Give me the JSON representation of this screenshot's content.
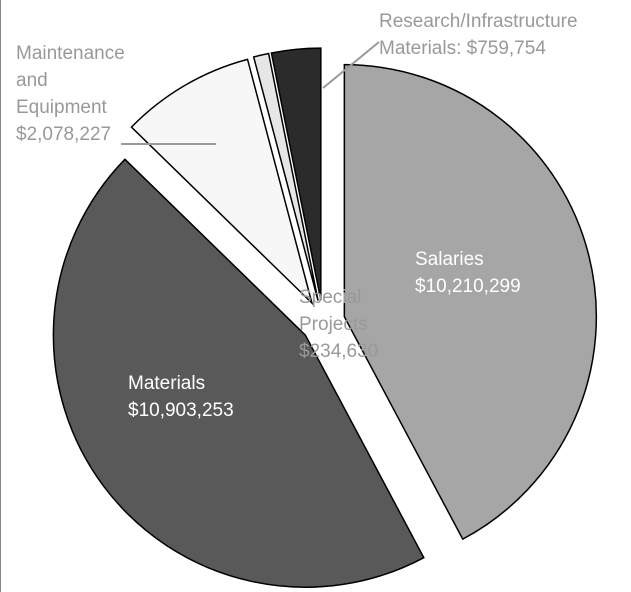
{
  "chart_data": {
    "type": "pie",
    "categories": [
      "Salaries",
      "Materials",
      "Maintenance and Equipment",
      "Special Projects",
      "Research/Infrastructure Materials:"
    ],
    "values": [
      10210299,
      10903253,
      2078227,
      234630,
      759754
    ],
    "value_labels": [
      "$10,210,299",
      "$10,903,253",
      "$2,078,227",
      "$234,630",
      "$759,754"
    ],
    "colors": [
      "#a6a6a6",
      "#595959",
      "#f7f7f7",
      "#e6e6e6",
      "#2b2b2b"
    ]
  }
}
